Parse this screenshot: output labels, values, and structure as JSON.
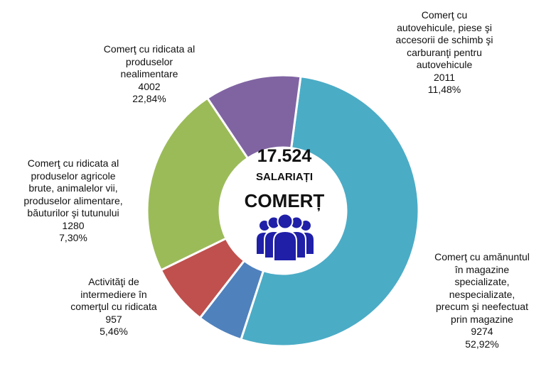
{
  "center": {
    "total": "17.524",
    "subtitle": "SALARIAȚI",
    "title": "COMERȚ",
    "icon": "people-group-icon",
    "icon_color": "#1f1fa8"
  },
  "chart_data": {
    "type": "pie",
    "donut": true,
    "total": 17524,
    "slices": [
      {
        "name": "Comerţ cu amănuntul în magazine specializate, nespecializate, precum şi neefectuat prin magazine",
        "label_lines": [
          "Comerţ cu amănuntul",
          "în magazine",
          "specializate,",
          "nespecializate,",
          "precum şi neefectuat",
          "prin magazine"
        ],
        "value": 9274,
        "value_label": "9274",
        "percent_label": "52,92%",
        "color": "#4bacc6"
      },
      {
        "name": "Activităţi de intermediere în comerţul cu ridicata",
        "label_lines": [
          "Activităţi de",
          "intermediere în",
          "comerţul cu ridicata"
        ],
        "value": 957,
        "value_label": "957",
        "percent_label": "5,46%",
        "color": "#4f81bd"
      },
      {
        "name": "Comerţ cu ridicata al produselor agricole brute, animalelor vii, produselor alimentare, băuturilor şi tutunului",
        "label_lines": [
          "Comerţ cu ridicata al",
          "produselor agricole",
          "brute, animalelor vii,",
          "produselor alimentare,",
          "băuturilor şi tutunului"
        ],
        "value": 1280,
        "value_label": "1280",
        "percent_label": "7,30%",
        "color": "#c0504d"
      },
      {
        "name": "Comerţ cu ridicata al produselor nealimentare",
        "label_lines": [
          "Comerţ cu ridicata al",
          "produselor",
          "nealimentare"
        ],
        "value": 4002,
        "value_label": "4002",
        "percent_label": "22,84%",
        "color": "#9bbb59"
      },
      {
        "name": "Comerţ cu autovehicule, piese şi accesorii de schimb şi carburanţi pentru autovehicule",
        "label_lines": [
          "Comerţ cu",
          "autovehicule, piese şi",
          "accesorii de schimb şi",
          "carburanţi pentru",
          "autovehicule"
        ],
        "value": 2011,
        "value_label": "2011",
        "percent_label": "11,48%",
        "color": "#8064a2"
      }
    ]
  }
}
